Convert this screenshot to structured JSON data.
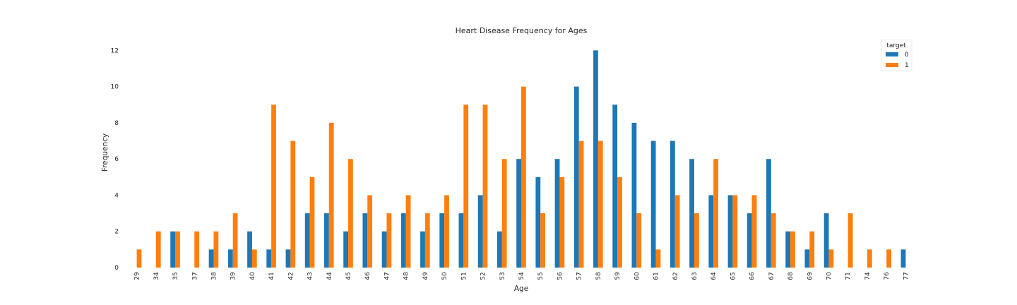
{
  "chart_data": {
    "type": "bar",
    "title": "Heart Disease Frequency for Ages",
    "xlabel": "Age",
    "ylabel": "Frequency",
    "categories": [
      "29",
      "34",
      "35",
      "37",
      "38",
      "39",
      "40",
      "41",
      "42",
      "43",
      "44",
      "45",
      "46",
      "47",
      "48",
      "49",
      "50",
      "51",
      "52",
      "53",
      "54",
      "55",
      "56",
      "57",
      "58",
      "59",
      "60",
      "61",
      "62",
      "63",
      "64",
      "65",
      "66",
      "67",
      "68",
      "69",
      "70",
      "71",
      "74",
      "76",
      "77"
    ],
    "series": [
      {
        "name": "0",
        "color": "#1f77b4",
        "values": [
          0,
          0,
          2,
          0,
          1,
          1,
          2,
          1,
          1,
          3,
          3,
          2,
          3,
          2,
          3,
          2,
          3,
          3,
          4,
          2,
          6,
          5,
          6,
          10,
          12,
          9,
          8,
          7,
          7,
          6,
          4,
          4,
          3,
          6,
          2,
          1,
          3,
          0,
          0,
          0,
          1
        ]
      },
      {
        "name": "1",
        "color": "#ff7f0e",
        "values": [
          1,
          2,
          2,
          2,
          2,
          3,
          1,
          9,
          7,
          5,
          8,
          6,
          4,
          3,
          4,
          3,
          4,
          9,
          9,
          6,
          10,
          3,
          5,
          7,
          7,
          5,
          3,
          1,
          4,
          3,
          6,
          4,
          4,
          3,
          2,
          2,
          1,
          3,
          1,
          1,
          0
        ]
      }
    ],
    "ylim": [
      0,
      12.6
    ],
    "yticks": [
      0,
      2,
      4,
      6,
      8,
      10,
      12
    ],
    "grid": false,
    "legend": {
      "title": "target",
      "placement": "top-right"
    }
  }
}
